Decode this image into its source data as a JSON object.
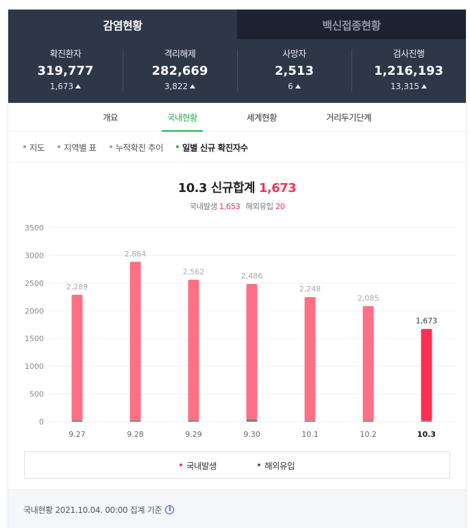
{
  "top_tabs": [
    {
      "label": "감염현황"
    },
    {
      "label": "백신접종현황"
    }
  ],
  "stats": [
    {
      "label": "확진환자",
      "value": "319,777",
      "delta": "1,673"
    },
    {
      "label": "격리해제",
      "value": "282,669",
      "delta": "3,822"
    },
    {
      "label": "사망자",
      "value": "2,513",
      "delta": "6"
    },
    {
      "label": "검사진행",
      "value": "1,216,193",
      "delta": "13,315"
    }
  ],
  "sub_tabs": [
    {
      "label": "개요"
    },
    {
      "label": "국내현황"
    },
    {
      "label": "세계현황"
    },
    {
      "label": "거리두기단계"
    }
  ],
  "filters": [
    {
      "label": "지도"
    },
    {
      "label": "지역별 표"
    },
    {
      "label": "누적확진 추이"
    },
    {
      "label": "일별 신규 확진자수"
    }
  ],
  "summary": {
    "title": "10.3 신규합계",
    "total": "1,673",
    "domestic_label": "국내발생",
    "domestic_value": "1,653",
    "overseas_label": "해외유입",
    "overseas_value": "20"
  },
  "colors": {
    "domestic": "#ff6f86",
    "domestic_highlight": "#ff2f56",
    "overseas": "#555555",
    "accent": "#19b349",
    "header_bg": "#2d3748"
  },
  "chart_data": {
    "type": "bar",
    "stacked": true,
    "categories": [
      "9.27",
      "9.28",
      "9.29",
      "9.30",
      "10.1",
      "10.2",
      "10.3"
    ],
    "totals": [
      "2,289",
      "2,884",
      "2,562",
      "2,486",
      "2,248",
      "2,085",
      "1,673"
    ],
    "series": [
      {
        "name": "국내발생",
        "values": [
          2265,
          2856,
          2536,
          2442,
          2226,
          2064,
          1653
        ]
      },
      {
        "name": "해외유입",
        "values": [
          24,
          28,
          26,
          44,
          22,
          21,
          20
        ]
      }
    ],
    "y_ticks": [
      "0",
      "500",
      "1000",
      "1500",
      "2000",
      "2500",
      "3000",
      "3500"
    ],
    "ylim": [
      0,
      3500
    ],
    "highlight_index": 6,
    "grid": true,
    "legend_position": "bottom"
  },
  "footer": {
    "text": "국내현황 2021.10.04. 00:00 집계 기준",
    "info_icon": "i"
  }
}
